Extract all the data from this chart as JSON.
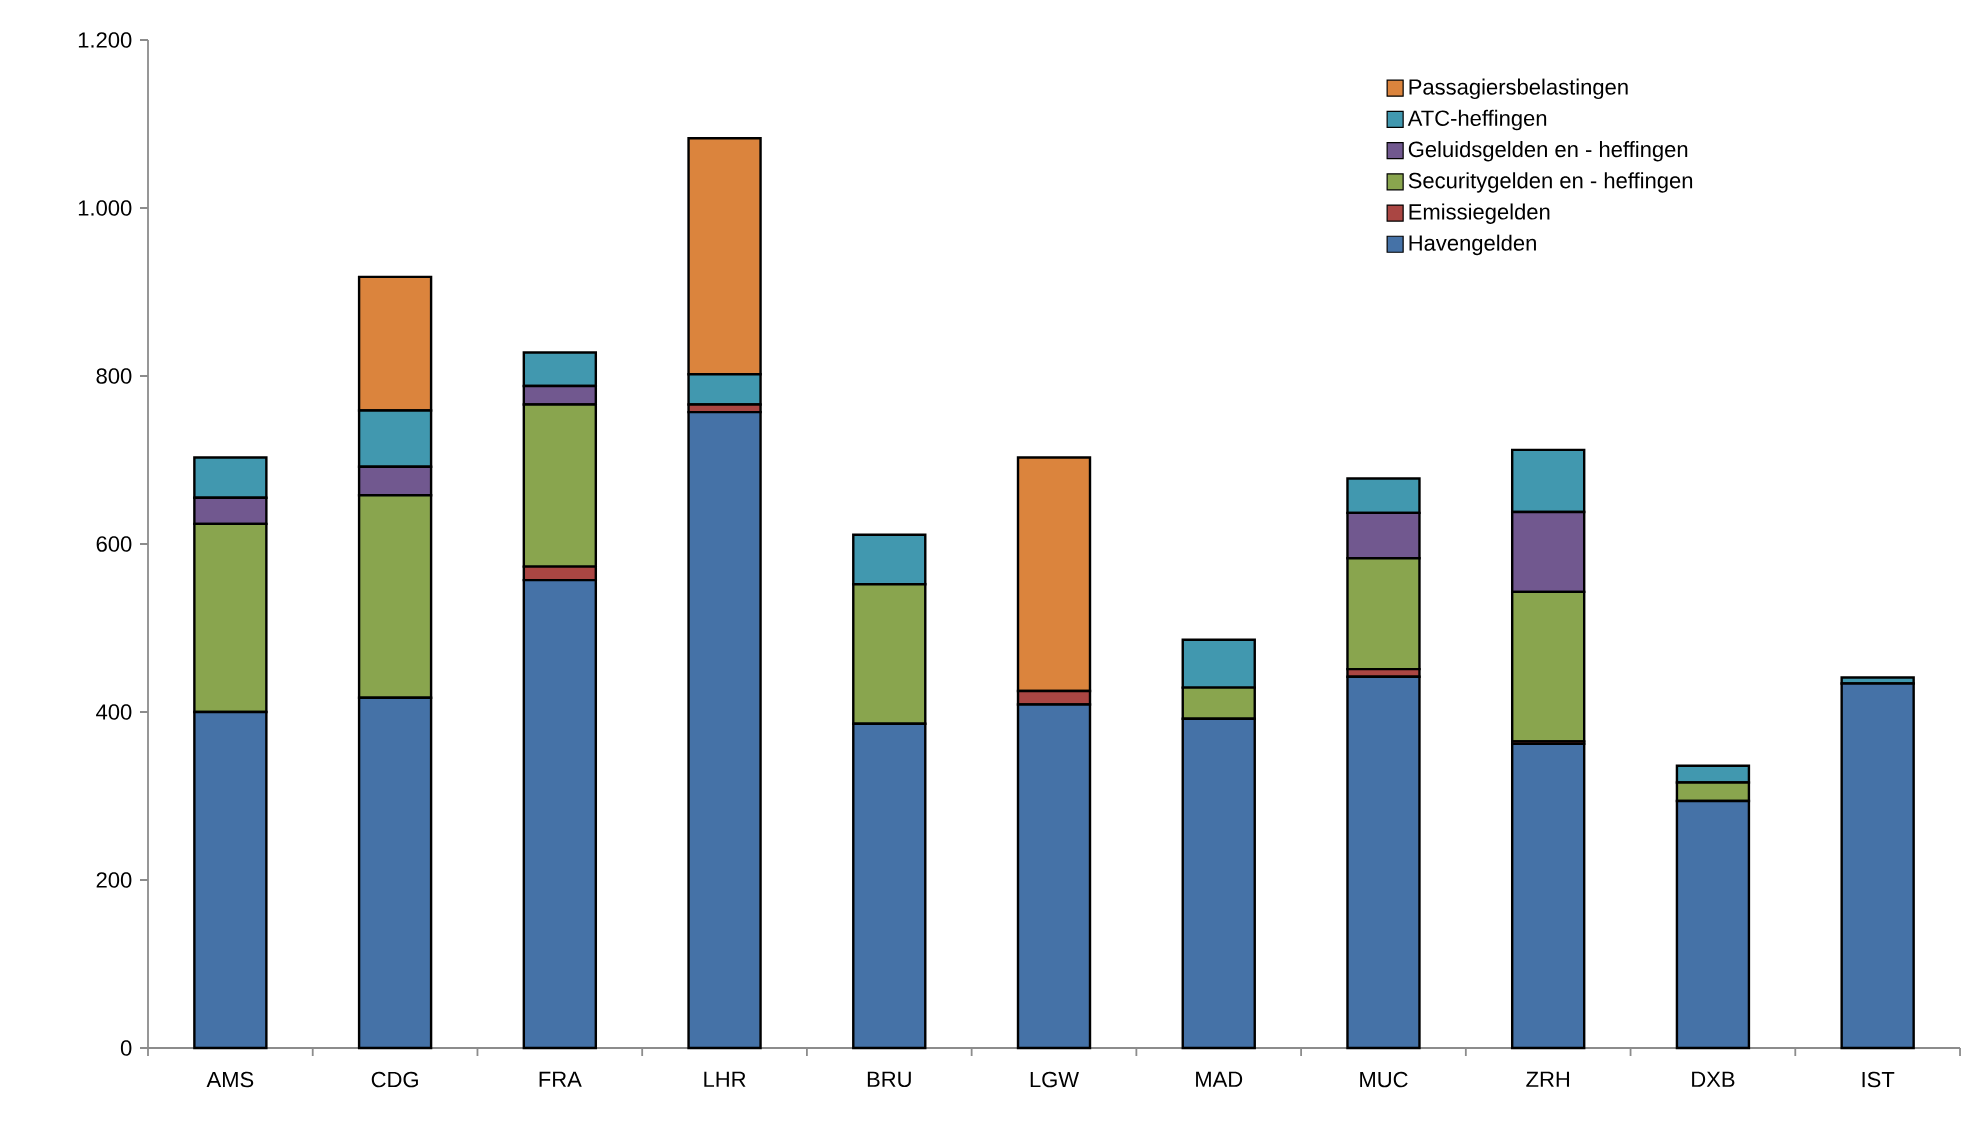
{
  "chart_data": {
    "type": "bar",
    "stacked": true,
    "legend": "top right",
    "grid": false,
    "categories": [
      "AMS",
      "CDG",
      "FRA",
      "LHR",
      "BRU",
      "LGW",
      "MAD",
      "MUC",
      "ZRH",
      "DXB",
      "IST"
    ],
    "series": [
      {
        "name": "Havengelden",
        "color": "#4572a7",
        "values": [
          400,
          417,
          557,
          757,
          386,
          409,
          392,
          442,
          362,
          294,
          434
        ]
      },
      {
        "name": "Emissiegelden",
        "color": "#aa4643",
        "values": [
          0,
          0,
          16,
          9,
          0,
          16,
          0,
          9,
          3,
          0,
          0
        ]
      },
      {
        "name": "Securitygelden en - heffingen",
        "color": "#89a54e",
        "values": [
          224,
          241,
          193,
          0,
          166,
          0,
          37,
          132,
          178,
          22,
          0
        ]
      },
      {
        "name": "Geluidsgelden en - heffingen",
        "color": "#71588f",
        "values": [
          31,
          34,
          22,
          0,
          0,
          0,
          0,
          54,
          95,
          0,
          0
        ]
      },
      {
        "name": "ATC-heffingen",
        "color": "#4198af",
        "values": [
          48,
          67,
          40,
          36,
          59,
          0,
          57,
          41,
          74,
          20,
          7
        ]
      },
      {
        "name": "Passagiersbelastingen",
        "color": "#db843d",
        "values": [
          0,
          159,
          0,
          281,
          0,
          278,
          0,
          0,
          0,
          0,
          0
        ]
      }
    ],
    "ylim": [
      0,
      1200
    ],
    "yticks": [
      0,
      200,
      400,
      600,
      800,
      {
        "value": 1000,
        "label": "1.000"
      },
      {
        "value": 1200,
        "label": "1.200"
      }
    ]
  }
}
